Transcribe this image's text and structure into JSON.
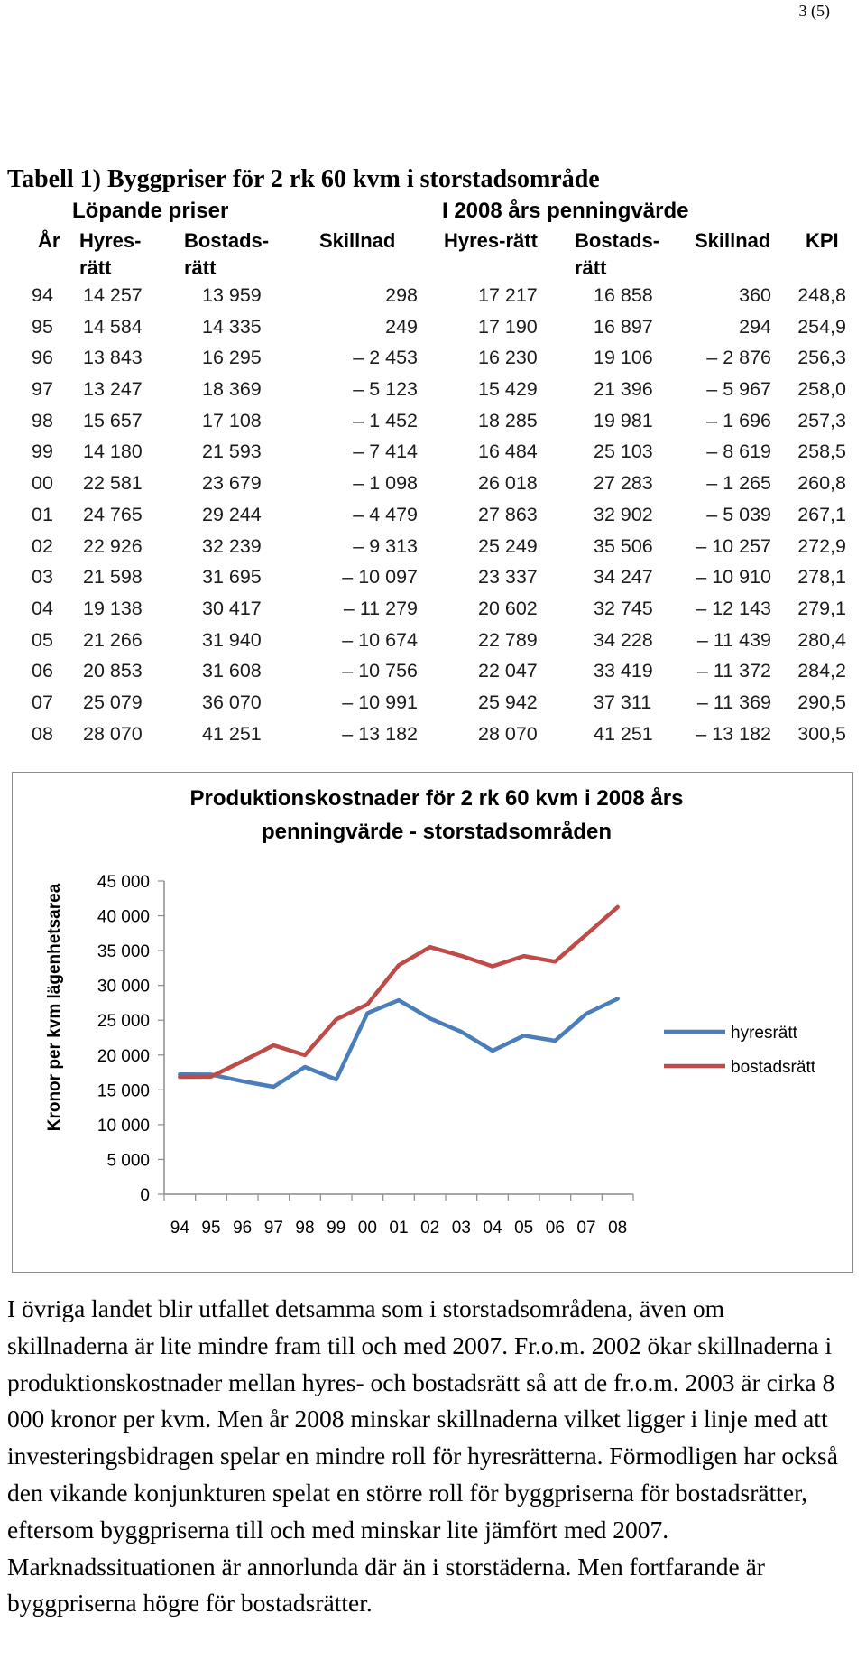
{
  "page_number": "3 (5)",
  "table": {
    "title": "Tabell 1) Byggpriser för 2 rk 60 kvm i storstadsområde",
    "group_current": "Löpande priser",
    "group_2008": "I 2008 års penningvärde",
    "headers": {
      "ar": "År",
      "hyres_1": "Hyres-",
      "hyres_2": "rätt",
      "bostads_1": "Bostads-",
      "bostads_2": "rätt",
      "skillnad": "Skillnad",
      "hyres_2008": "Hyres-rätt",
      "bostads2008_1": "Bostads-",
      "bostads2008_2": "rätt",
      "skillnad_2008": "Skillnad",
      "kpi": "KPI"
    },
    "rows": [
      [
        "94",
        "14 257",
        "13 959",
        "298",
        "17 217",
        "16 858",
        "360",
        "248,8"
      ],
      [
        "95",
        "14 584",
        "14 335",
        "249",
        "17 190",
        "16 897",
        "294",
        "254,9"
      ],
      [
        "96",
        "13 843",
        "16 295",
        "– 2 453",
        "16 230",
        "19 106",
        "– 2 876",
        "256,3"
      ],
      [
        "97",
        "13 247",
        "18 369",
        "– 5 123",
        "15 429",
        "21 396",
        "– 5 967",
        "258,0"
      ],
      [
        "98",
        "15 657",
        "17 108",
        "– 1 452",
        "18 285",
        "19 981",
        "– 1 696",
        "257,3"
      ],
      [
        "99",
        "14 180",
        "21 593",
        "– 7 414",
        "16 484",
        "25 103",
        "– 8 619",
        "258,5"
      ],
      [
        "00",
        "22 581",
        "23 679",
        "– 1 098",
        "26 018",
        "27 283",
        "– 1 265",
        "260,8"
      ],
      [
        "01",
        "24 765",
        "29 244",
        "– 4 479",
        "27 863",
        "32 902",
        "– 5 039",
        "267,1"
      ],
      [
        "02",
        "22 926",
        "32 239",
        "– 9 313",
        "25 249",
        "35 506",
        "– 10 257",
        "272,9"
      ],
      [
        "03",
        "21 598",
        "31 695",
        "– 10 097",
        "23 337",
        "34 247",
        "– 10 910",
        "278,1"
      ],
      [
        "04",
        "19 138",
        "30 417",
        "– 11 279",
        "20 602",
        "32 745",
        "– 12 143",
        "279,1"
      ],
      [
        "05",
        "21 266",
        "31 940",
        "– 10 674",
        "22 789",
        "34 228",
        "– 11 439",
        "280,4"
      ],
      [
        "06",
        "20 853",
        "31 608",
        "– 10 756",
        "22 047",
        "33 419",
        "– 11 372",
        "284,2"
      ],
      [
        "07",
        "25 079",
        "36 070",
        "– 10 991",
        "25 942",
        "37 311",
        "– 11 369",
        "290,5"
      ],
      [
        "08",
        "28 070",
        "41 251",
        "– 13 182",
        "28 070",
        "41 251",
        "– 13 182",
        "300,5"
      ]
    ]
  },
  "chart_data": {
    "type": "line",
    "title": "Produktionskostnader för 2 rk 60 kvm i 2008 års penningvärde - storstadsområden",
    "title_line1": "Produktionskostnader för 2 rk 60 kvm i 2008 års",
    "title_line2": "penningvärde - storstadsområden",
    "xlabel": "",
    "ylabel": "Kronor per kvm lägenhetsarea",
    "ylim": [
      0,
      45000
    ],
    "y_ticks": [
      0,
      5000,
      10000,
      15000,
      20000,
      25000,
      30000,
      35000,
      40000,
      45000
    ],
    "y_tick_labels": [
      "0",
      "5 000",
      "10 000",
      "15 000",
      "20 000",
      "25 000",
      "30 000",
      "35 000",
      "40 000",
      "45 000"
    ],
    "categories": [
      "94",
      "95",
      "96",
      "97",
      "98",
      "99",
      "00",
      "01",
      "02",
      "03",
      "04",
      "05",
      "06",
      "07",
      "08"
    ],
    "legend_position": "right",
    "grid": false,
    "series": [
      {
        "name": "hyresrätt",
        "color": "#4a7ebb",
        "values": [
          17217,
          17190,
          16230,
          15429,
          18285,
          16484,
          26018,
          27863,
          25249,
          23337,
          20602,
          22789,
          22047,
          25942,
          28070
        ]
      },
      {
        "name": "bostadsrätt",
        "color": "#be4b48",
        "values": [
          16858,
          16897,
          19106,
          21396,
          19981,
          25103,
          27283,
          32902,
          35506,
          34247,
          32745,
          34228,
          33419,
          37311,
          41251
        ]
      }
    ]
  },
  "paragraph": "I övriga landet blir utfallet detsamma som i storstadsområdena, även om skillnaderna är lite mindre fram till och med 2007. Fr.o.m. 2002 ökar skillnaderna i produktionskostnader mellan hyres- och bostadsrätt så att de fr.o.m. 2003 är cirka 8 000 kronor per kvm. Men år 2008 minskar skillnaderna vilket ligger i linje med att investeringsbidragen spelar en mindre roll för hyresrätterna. Förmodligen har också den vikande konjunkturen spelat en större roll för byggpriserna för bostadsrätter, eftersom byggpriserna till och med minskar lite jämfört med 2007. Marknadssituationen är annorlunda där än i storstäderna. Men fortfarande är byggpriserna högre för bostadsrätter."
}
